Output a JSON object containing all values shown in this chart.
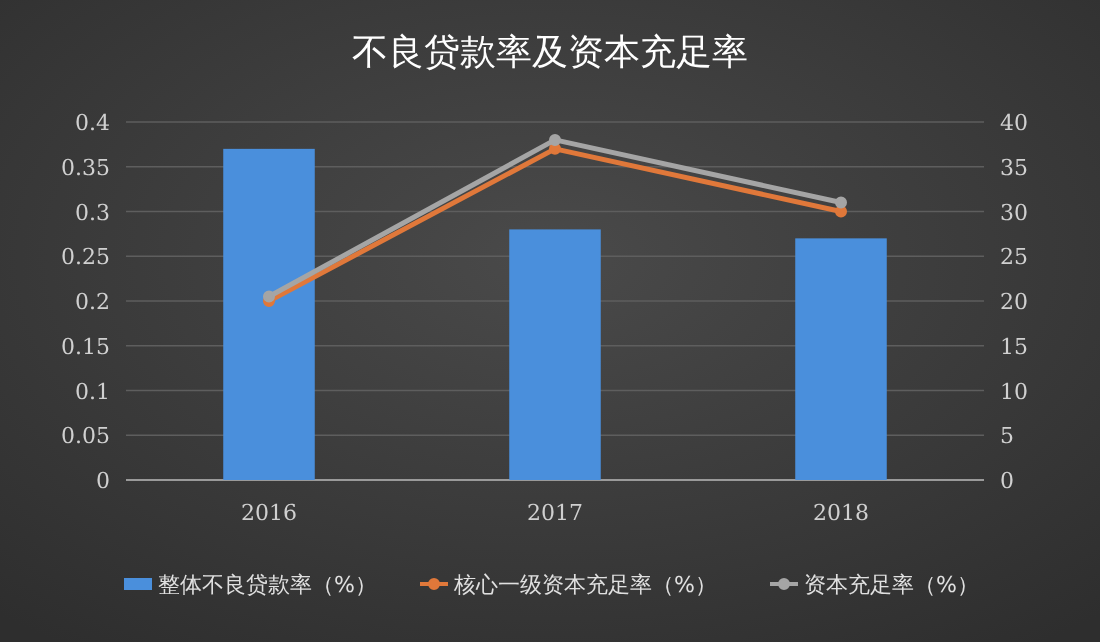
{
  "chart_data": {
    "type": "bar",
    "title": "不良贷款率及资本充足率",
    "categories": [
      "2016",
      "2017",
      "2018"
    ],
    "series": [
      {
        "name": "整体不良贷款率（%）",
        "color": "#4a8fdc",
        "values": [
          0.37,
          0.28,
          0.27
        ]
      },
      {
        "name": "核心一级资本充足率（%）",
        "color": "#e0783a",
        "type": "line",
        "axis": "y2",
        "values": [
          20,
          37,
          30
        ]
      },
      {
        "name": "资本充足率（%）",
        "color": "#a5a5a5",
        "type": "line",
        "axis": "y2",
        "values": [
          20.5,
          38,
          31
        ]
      }
    ],
    "ylim": [
      0,
      0.4
    ],
    "yticks": [
      0,
      0.05,
      0.1,
      0.15,
      0.2,
      0.25,
      0.3,
      0.35,
      0.4
    ],
    "y2lim": [
      0,
      40
    ],
    "y2ticks": [
      0,
      5,
      10,
      15,
      20,
      25,
      30,
      35,
      40
    ],
    "grid": "y",
    "legend": "bottom",
    "marker": "circle"
  }
}
